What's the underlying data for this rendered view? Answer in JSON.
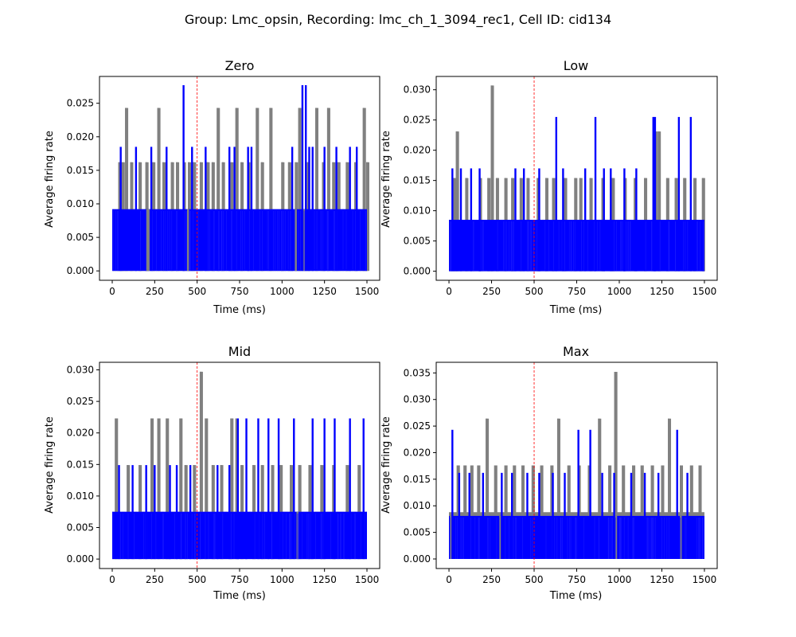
{
  "figure": {
    "suptitle": "Group: Lmc_opsin, Recording: lmc_ch_1_3094_rec1, Cell ID: cid134",
    "colors": {
      "background": "#ffffff",
      "series_gray": "#808080",
      "series_blue": "#0000ff",
      "marker_line": "#ff0000"
    }
  },
  "chart_data": [
    {
      "type": "line",
      "title": "Zero",
      "xlabel": "Time (ms)",
      "ylabel": "Average firing rate",
      "xlim": [
        -75,
        1575
      ],
      "ylim": [
        -0.0014,
        0.029
      ],
      "xticks": [
        0,
        250,
        500,
        750,
        1000,
        1250,
        1500
      ],
      "xticklabels": [
        "0",
        "250",
        "500",
        "750",
        "1000",
        "1250",
        "1500"
      ],
      "yticks": [
        0.0,
        0.005,
        0.01,
        0.015,
        0.02,
        0.025
      ],
      "yticklabels": [
        "0.000",
        "0.005",
        "0.010",
        "0.015",
        "0.020",
        "0.025"
      ],
      "vline_x": 500,
      "baseline": 0.0092,
      "levels": {
        "gray": [
          0.0162,
          0.0243
        ],
        "blue": [
          0.0185,
          0.0277
        ]
      },
      "series": [
        {
          "color": "gray",
          "peaks": [
            [
              40,
              0.0162
            ],
            [
              60,
              0.0162
            ],
            [
              80,
              0.0243
            ],
            [
              110,
              0.0162
            ],
            [
              160,
              0.0162
            ],
            [
              200,
              0.0162
            ],
            [
              240,
              0.0162
            ],
            [
              270,
              0.0243
            ],
            [
              300,
              0.0162
            ],
            [
              350,
              0.0162
            ],
            [
              380,
              0.0162
            ],
            [
              420,
              0.0162
            ],
            [
              450,
              0.0162
            ],
            [
              480,
              0.0162
            ],
            [
              520,
              0.0162
            ],
            [
              560,
              0.0162
            ],
            [
              590,
              0.0162
            ],
            [
              620,
              0.0243
            ],
            [
              650,
              0.0162
            ],
            [
              700,
              0.0162
            ],
            [
              730,
              0.0243
            ],
            [
              760,
              0.0162
            ],
            [
              800,
              0.0162
            ],
            [
              850,
              0.0243
            ],
            [
              880,
              0.0162
            ],
            [
              930,
              0.0243
            ],
            [
              1000,
              0.0162
            ],
            [
              1040,
              0.0162
            ],
            [
              1080,
              0.0162
            ],
            [
              1100,
              0.0243
            ],
            [
              1150,
              0.0162
            ],
            [
              1200,
              0.0243
            ],
            [
              1240,
              0.0162
            ],
            [
              1270,
              0.0243
            ],
            [
              1300,
              0.0162
            ],
            [
              1330,
              0.0162
            ],
            [
              1380,
              0.0162
            ],
            [
              1430,
              0.0162
            ],
            [
              1480,
              0.0243
            ],
            [
              1500,
              0.0162
            ]
          ],
          "dips": [
            205,
            213,
            445,
            1080,
            1130
          ]
        },
        {
          "color": "blue",
          "peaks": [
            [
              50,
              0.0185
            ],
            [
              140,
              0.0185
            ],
            [
              230,
              0.0185
            ],
            [
              320,
              0.0185
            ],
            [
              420,
              0.0277
            ],
            [
              470,
              0.0185
            ],
            [
              550,
              0.0185
            ],
            [
              690,
              0.0185
            ],
            [
              720,
              0.0185
            ],
            [
              800,
              0.0185
            ],
            [
              820,
              0.0185
            ],
            [
              1060,
              0.0185
            ],
            [
              1120,
              0.0277
            ],
            [
              1140,
              0.0277
            ],
            [
              1160,
              0.0185
            ],
            [
              1180,
              0.0185
            ],
            [
              1250,
              0.0185
            ],
            [
              1320,
              0.0185
            ],
            [
              1400,
              0.0185
            ],
            [
              1440,
              0.0185
            ]
          ],
          "dips": []
        }
      ]
    },
    {
      "type": "line",
      "title": "Low",
      "xlabel": "Time (ms)",
      "ylabel": "Average firing rate",
      "xlim": [
        -75,
        1575
      ],
      "ylim": [
        -0.0015,
        0.0322
      ],
      "xticks": [
        0,
        250,
        500,
        750,
        1000,
        1250,
        1500
      ],
      "xticklabels": [
        "0",
        "250",
        "500",
        "750",
        "1000",
        "1250",
        "1500"
      ],
      "yticks": [
        0.0,
        0.005,
        0.01,
        0.015,
        0.02,
        0.025,
        0.03
      ],
      "yticklabels": [
        "0.000",
        "0.005",
        "0.010",
        "0.015",
        "0.020",
        "0.025",
        "0.030"
      ],
      "vline_x": 500,
      "baseline": 0.0085,
      "levels": {
        "gray": [
          0.0154,
          0.0231,
          0.0307
        ],
        "blue": [
          0.017,
          0.0255
        ]
      },
      "series": [
        {
          "color": "gray",
          "peaks": [
            [
              30,
              0.0154
            ],
            [
              45,
              0.0231
            ],
            [
              100,
              0.0154
            ],
            [
              180,
              0.0154
            ],
            [
              230,
              0.0154
            ],
            [
              250,
              0.0307
            ],
            [
              280,
              0.0154
            ],
            [
              330,
              0.0154
            ],
            [
              370,
              0.0154
            ],
            [
              420,
              0.0154
            ],
            [
              460,
              0.0154
            ],
            [
              520,
              0.0154
            ],
            [
              570,
              0.0154
            ],
            [
              610,
              0.0154
            ],
            [
              680,
              0.0154
            ],
            [
              740,
              0.0154
            ],
            [
              770,
              0.0154
            ],
            [
              830,
              0.0154
            ],
            [
              900,
              0.0154
            ],
            [
              960,
              0.0154
            ],
            [
              1030,
              0.0154
            ],
            [
              1090,
              0.0154
            ],
            [
              1150,
              0.0154
            ],
            [
              1210,
              0.0231
            ],
            [
              1230,
              0.0231
            ],
            [
              1280,
              0.0154
            ],
            [
              1330,
              0.0154
            ],
            [
              1380,
              0.0154
            ],
            [
              1440,
              0.0154
            ],
            [
              1490,
              0.0154
            ]
          ],
          "dips": []
        },
        {
          "color": "blue",
          "peaks": [
            [
              20,
              0.017
            ],
            [
              70,
              0.017
            ],
            [
              130,
              0.017
            ],
            [
              180,
              0.017
            ],
            [
              390,
              0.017
            ],
            [
              440,
              0.017
            ],
            [
              530,
              0.017
            ],
            [
              630,
              0.0255
            ],
            [
              670,
              0.017
            ],
            [
              800,
              0.017
            ],
            [
              860,
              0.0255
            ],
            [
              910,
              0.017
            ],
            [
              950,
              0.017
            ],
            [
              1030,
              0.017
            ],
            [
              1100,
              0.017
            ],
            [
              1200,
              0.0255
            ],
            [
              1210,
              0.0255
            ],
            [
              1350,
              0.0255
            ],
            [
              1420,
              0.0255
            ]
          ],
          "dips": []
        }
      ]
    },
    {
      "type": "line",
      "title": "Mid",
      "xlabel": "Time (ms)",
      "ylabel": "Average firing rate",
      "xlim": [
        -75,
        1575
      ],
      "ylim": [
        -0.0015,
        0.0312
      ],
      "xticks": [
        0,
        250,
        500,
        750,
        1000,
        1250,
        1500
      ],
      "xticklabels": [
        "0",
        "250",
        "500",
        "750",
        "1000",
        "1250",
        "1500"
      ],
      "yticks": [
        0.0,
        0.005,
        0.01,
        0.015,
        0.02,
        0.025,
        0.03
      ],
      "yticklabels": [
        "0.000",
        "0.005",
        "0.010",
        "0.015",
        "0.020",
        "0.025",
        "0.030"
      ],
      "vline_x": 500,
      "baseline": 0.0075,
      "levels": {
        "gray": [
          0.0149,
          0.0223,
          0.0297
        ],
        "blue": [
          0.0149,
          0.0223
        ]
      },
      "series": [
        {
          "color": "gray",
          "peaks": [
            [
              20,
              0.0223
            ],
            [
              90,
              0.0149
            ],
            [
              160,
              0.0149
            ],
            [
              230,
              0.0223
            ],
            [
              270,
              0.0223
            ],
            [
              320,
              0.0223
            ],
            [
              400,
              0.0223
            ],
            [
              430,
              0.0149
            ],
            [
              480,
              0.0149
            ],
            [
              520,
              0.0297
            ],
            [
              550,
              0.0223
            ],
            [
              590,
              0.0149
            ],
            [
              640,
              0.0149
            ],
            [
              700,
              0.0223
            ],
            [
              730,
              0.0223
            ],
            [
              760,
              0.0149
            ],
            [
              830,
              0.0149
            ],
            [
              880,
              0.0149
            ],
            [
              940,
              0.0149
            ],
            [
              990,
              0.0149
            ],
            [
              1050,
              0.0149
            ],
            [
              1100,
              0.0149
            ],
            [
              1160,
              0.0149
            ],
            [
              1230,
              0.0149
            ],
            [
              1300,
              0.0149
            ],
            [
              1380,
              0.0149
            ],
            [
              1450,
              0.0149
            ]
          ],
          "dips": [
            1090
          ]
        },
        {
          "color": "blue",
          "peaks": [
            [
              40,
              0.0149
            ],
            [
              120,
              0.0149
            ],
            [
              200,
              0.0149
            ],
            [
              250,
              0.0149
            ],
            [
              340,
              0.0149
            ],
            [
              380,
              0.0149
            ],
            [
              460,
              0.0149
            ],
            [
              620,
              0.0149
            ],
            [
              690,
              0.0149
            ],
            [
              740,
              0.0223
            ],
            [
              790,
              0.0223
            ],
            [
              860,
              0.0223
            ],
            [
              920,
              0.0223
            ],
            [
              980,
              0.0223
            ],
            [
              1070,
              0.0223
            ],
            [
              1180,
              0.0223
            ],
            [
              1250,
              0.0223
            ],
            [
              1310,
              0.0223
            ],
            [
              1400,
              0.0223
            ],
            [
              1480,
              0.0223
            ]
          ],
          "dips": []
        }
      ]
    },
    {
      "type": "line",
      "title": "Max",
      "xlabel": "Time (ms)",
      "ylabel": "Average firing rate",
      "xlim": [
        -75,
        1575
      ],
      "ylim": [
        -0.0018,
        0.037
      ],
      "xticks": [
        0,
        250,
        500,
        750,
        1000,
        1250,
        1500
      ],
      "xticklabels": [
        "0",
        "250",
        "500",
        "750",
        "1000",
        "1250",
        "1500"
      ],
      "yticks": [
        0.0,
        0.005,
        0.01,
        0.015,
        0.02,
        0.025,
        0.03,
        0.035
      ],
      "yticklabels": [
        "0.000",
        "0.005",
        "0.010",
        "0.015",
        "0.020",
        "0.025",
        "0.030",
        "0.035"
      ],
      "vline_x": 500,
      "baseline": 0.0081,
      "levels": {
        "gray": [
          0.0088,
          0.0176,
          0.0264,
          0.0352
        ],
        "blue": [
          0.0162,
          0.0243
        ]
      },
      "series": [
        {
          "color": "gray",
          "peaks": [
            [
              50,
              0.0176
            ],
            [
              90,
              0.0176
            ],
            [
              130,
              0.0176
            ],
            [
              170,
              0.0176
            ],
            [
              220,
              0.0264
            ],
            [
              270,
              0.0176
            ],
            [
              330,
              0.0176
            ],
            [
              380,
              0.0176
            ],
            [
              430,
              0.0176
            ],
            [
              490,
              0.0176
            ],
            [
              540,
              0.0176
            ],
            [
              600,
              0.0176
            ],
            [
              640,
              0.0264
            ],
            [
              700,
              0.0176
            ],
            [
              760,
              0.0176
            ],
            [
              820,
              0.0176
            ],
            [
              880,
              0.0264
            ],
            [
              940,
              0.0176
            ],
            [
              975,
              0.0352
            ],
            [
              1020,
              0.0176
            ],
            [
              1080,
              0.0176
            ],
            [
              1130,
              0.0176
            ],
            [
              1190,
              0.0176
            ],
            [
              1250,
              0.0176
            ],
            [
              1290,
              0.0264
            ],
            [
              1360,
              0.0176
            ],
            [
              1420,
              0.0176
            ],
            [
              1470,
              0.0176
            ]
          ],
          "dips": [
            10,
            300,
            980,
            1360
          ]
        },
        {
          "color": "blue",
          "peaks": [
            [
              20,
              0.0243
            ],
            [
              60,
              0.0162
            ],
            [
              120,
              0.0162
            ],
            [
              200,
              0.0162
            ],
            [
              310,
              0.0162
            ],
            [
              370,
              0.0162
            ],
            [
              460,
              0.0162
            ],
            [
              530,
              0.0162
            ],
            [
              610,
              0.0162
            ],
            [
              680,
              0.0162
            ],
            [
              760,
              0.0243
            ],
            [
              830,
              0.0243
            ],
            [
              900,
              0.0162
            ],
            [
              970,
              0.0162
            ],
            [
              1070,
              0.0162
            ],
            [
              1150,
              0.0162
            ],
            [
              1230,
              0.0162
            ],
            [
              1340,
              0.0243
            ],
            [
              1400,
              0.0162
            ]
          ],
          "dips": []
        }
      ]
    }
  ]
}
